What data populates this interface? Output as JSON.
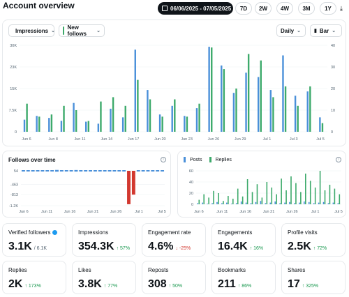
{
  "header": {
    "title": "Account overview",
    "date_range": "06/06/2025 - 07/05/2025",
    "ranges": [
      "7D",
      "2W",
      "4W",
      "3M",
      "1Y"
    ]
  },
  "main_chart": {
    "metric1": "Impressions",
    "metric2": "New follows",
    "granularity": "Daily",
    "chart_type_label": "Bar",
    "colors": {
      "impressions": "#4a90d9",
      "follows": "#3daa6b"
    }
  },
  "follows_chart": {
    "title": "Follows over time"
  },
  "posts_chart": {
    "posts_label": "Posts",
    "replies_label": "Replies"
  },
  "stats": [
    {
      "label": "Verified followers",
      "value": "3.1K",
      "sub": "/ 6.1K",
      "change": "",
      "dir": ""
    },
    {
      "label": "Impressions",
      "value": "354.3K",
      "change": "↑ 57%",
      "dir": "up"
    },
    {
      "label": "Engagement rate",
      "value": "4.6%",
      "change": "↓ -25%",
      "dir": "down"
    },
    {
      "label": "Engagements",
      "value": "16.4K",
      "change": "↑ 16%",
      "dir": "up"
    },
    {
      "label": "Profile visits",
      "value": "2.5K",
      "change": "↑ 72%",
      "dir": "up"
    },
    {
      "label": "Replies",
      "value": "2K",
      "change": "↑ 173%",
      "dir": "up"
    },
    {
      "label": "Likes",
      "value": "3.8K",
      "change": "↑ 77%",
      "dir": "up"
    },
    {
      "label": "Reposts",
      "value": "308",
      "change": "↑ 50%",
      "dir": "up"
    },
    {
      "label": "Bookmarks",
      "value": "211",
      "change": "↑ 86%",
      "dir": "up"
    },
    {
      "label": "Shares",
      "value": "17",
      "change": "↑ 325%",
      "dir": "up"
    }
  ],
  "chart_data": [
    {
      "type": "bar",
      "x_tick_labels": [
        "Jun 6",
        "Jun 8",
        "Jun 11",
        "Jun 14",
        "Jun 17",
        "Jun 20",
        "Jun 23",
        "Jun 26",
        "Jun 29",
        "Jul 1",
        "Jul 3",
        "Jul 5"
      ],
      "y_left_ticks": [
        "0",
        "7.5K",
        "15K",
        "23K",
        "30K"
      ],
      "y_right_ticks": [
        "0",
        "10",
        "20",
        "30",
        "40"
      ],
      "series": [
        {
          "name": "Impressions",
          "values": [
            4200,
            5500,
            4800,
            3800,
            10000,
            3500,
            2800,
            8000,
            5000,
            28500,
            14500,
            6000,
            9000,
            5500,
            8200,
            29500,
            23000,
            13500,
            20500,
            19000,
            14500,
            26500,
            12500,
            14000,
            5000
          ]
        },
        {
          "name": "New follows",
          "values": [
            13,
            7,
            8,
            12,
            10,
            5,
            14,
            16,
            12,
            24,
            15,
            7,
            15,
            7,
            13,
            39,
            29,
            20,
            36,
            33,
            16,
            21,
            12,
            21,
            4
          ]
        }
      ]
    },
    {
      "type": "bar",
      "title": "Follows over time",
      "y_ticks": [
        "54",
        "-463",
        "-813",
        "-1.2K"
      ],
      "x_tick_labels": [
        "Jun 6",
        "Jun 11",
        "Jun 16",
        "Jun 21",
        "Jun 26",
        "Jul 1",
        "Jul 5"
      ],
      "series": [
        {
          "name": "Follows",
          "values": [
            10,
            12,
            15,
            8,
            14,
            11,
            9,
            20,
            13,
            16,
            12,
            18,
            7,
            15,
            10,
            11,
            14,
            9,
            12,
            13,
            16,
            15,
            -1150,
            -820,
            12,
            10,
            14,
            11,
            9,
            13
          ]
        }
      ]
    },
    {
      "type": "bar",
      "y_ticks": [
        "0",
        "20",
        "40",
        "60"
      ],
      "x_tick_labels": [
        "Jun 6",
        "Jun 11",
        "Jun 16",
        "Jun 21",
        "Jun 26",
        "Jul 1",
        "Jul 5"
      ],
      "series": [
        {
          "name": "Posts",
          "values": [
            2,
            3,
            1,
            2,
            4,
            2,
            3,
            1,
            2,
            5,
            3,
            2,
            4,
            6,
            2,
            3,
            5,
            2,
            3,
            4,
            2,
            3,
            5,
            4,
            2,
            3,
            4,
            2,
            3,
            2
          ]
        },
        {
          "name": "Replies",
          "values": [
            8,
            18,
            12,
            24,
            20,
            6,
            15,
            10,
            28,
            14,
            45,
            22,
            36,
            12,
            40,
            30,
            18,
            46,
            25,
            50,
            38,
            22,
            55,
            42,
            30,
            60,
            25,
            35,
            28,
            18
          ]
        }
      ]
    }
  ]
}
